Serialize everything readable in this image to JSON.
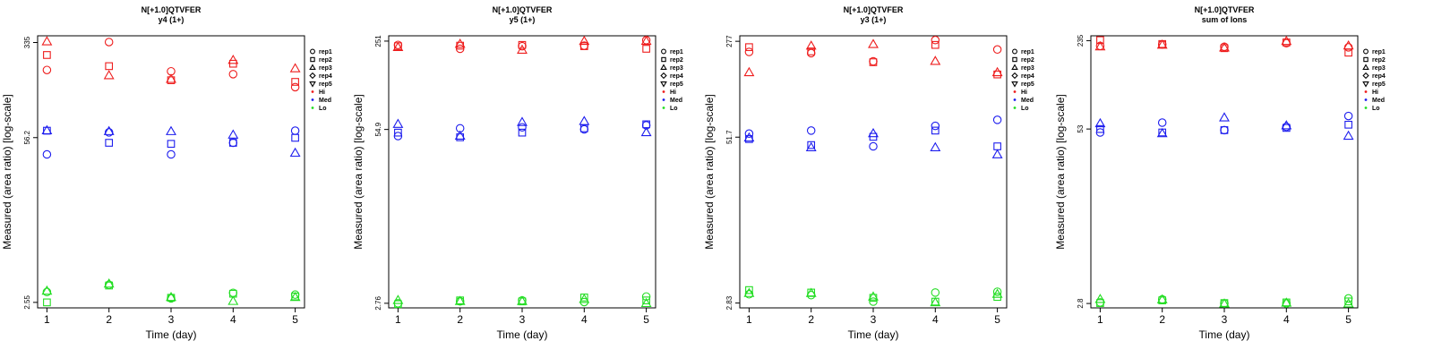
{
  "chart_data": [
    {
      "type": "scatter",
      "title": "N[+1.0]QTVFER",
      "subtitle": "y4 (1+)",
      "xlabel": "Time (day)",
      "ylabel": "Measured (area ratio) [log-scale]",
      "x_ticks": [
        "1",
        "2",
        "3",
        "4",
        "5"
      ],
      "y_ticks": [
        "2.55",
        "56.2",
        "335"
      ],
      "y_scale": "log",
      "ylim": [
        2.3,
        380
      ],
      "legend_position": "right",
      "series": [
        {
          "name": "Hi rep1",
          "level": "Hi",
          "rep": "rep1",
          "x": [
            1,
            2,
            3,
            4,
            5
          ],
          "y": [
            200,
            338,
            195,
            185,
            145
          ]
        },
        {
          "name": "Hi rep2",
          "level": "Hi",
          "rep": "rep2",
          "x": [
            1,
            2,
            3,
            4,
            5
          ],
          "y": [
            265,
            215,
            165,
            225,
            160
          ]
        },
        {
          "name": "Hi rep3",
          "level": "Hi",
          "rep": "rep3",
          "x": [
            1,
            2,
            3,
            4,
            5
          ],
          "y": [
            340,
            180,
            168,
            240,
            205
          ]
        },
        {
          "name": "Med rep1",
          "level": "Med",
          "rep": "rep1",
          "x": [
            1,
            2,
            3,
            4,
            5
          ],
          "y": [
            41,
            62,
            41,
            51,
            64
          ]
        },
        {
          "name": "Med rep2",
          "level": "Med",
          "rep": "rep2",
          "x": [
            1,
            2,
            3,
            4,
            5
          ],
          "y": [
            64,
            51,
            50,
            51,
            56
          ]
        },
        {
          "name": "Med rep3",
          "level": "Med",
          "rep": "rep3",
          "x": [
            1,
            2,
            3,
            4,
            5
          ],
          "y": [
            64,
            63,
            63,
            59,
            42
          ]
        },
        {
          "name": "Lo rep1",
          "level": "Lo",
          "rep": "rep1",
          "x": [
            1,
            2,
            3,
            4,
            5
          ],
          "y": [
            3.1,
            3.55,
            2.75,
            3.05,
            2.95
          ]
        },
        {
          "name": "Lo rep2",
          "level": "Lo",
          "rep": "rep2",
          "x": [
            1,
            2,
            3,
            4,
            5
          ],
          "y": [
            2.55,
            3.5,
            2.78,
            3.0,
            2.85
          ]
        },
        {
          "name": "Lo rep3",
          "level": "Lo",
          "rep": "rep3",
          "x": [
            1,
            2,
            3,
            4,
            5
          ],
          "y": [
            3.15,
            3.6,
            2.8,
            2.6,
            2.8
          ]
        }
      ]
    },
    {
      "type": "scatter",
      "title": "N[+1.0]QTVFER",
      "subtitle": "y5 (1+)",
      "xlabel": "Time (day)",
      "ylabel": "Measured (area ratio) [log-scale]",
      "x_ticks": [
        "1",
        "2",
        "3",
        "4",
        "5"
      ],
      "y_ticks": [
        "2.76",
        "54.9",
        "251"
      ],
      "y_scale": "log",
      "ylim": [
        2.55,
        275
      ],
      "legend_position": "right",
      "series": [
        {
          "name": "Hi rep1",
          "level": "Hi",
          "rep": "rep1",
          "x": [
            1,
            2,
            3,
            4,
            5
          ],
          "y": [
            235,
            220,
            230,
            232,
            255
          ]
        },
        {
          "name": "Hi rep2",
          "level": "Hi",
          "rep": "rep2",
          "x": [
            1,
            2,
            3,
            4,
            5
          ],
          "y": [
            230,
            232,
            235,
            230,
            220
          ]
        },
        {
          "name": "Hi rep3",
          "level": "Hi",
          "rep": "rep3",
          "x": [
            1,
            2,
            3,
            4,
            5
          ],
          "y": [
            225,
            238,
            215,
            250,
            250
          ]
        },
        {
          "name": "Med rep1",
          "level": "Med",
          "rep": "rep1",
          "x": [
            1,
            2,
            3,
            4,
            5
          ],
          "y": [
            49,
            56,
            57,
            55,
            59
          ]
        },
        {
          "name": "Med rep2",
          "level": "Med",
          "rep": "rep2",
          "x": [
            1,
            2,
            3,
            4,
            5
          ],
          "y": [
            52,
            48,
            52,
            56,
            60
          ]
        },
        {
          "name": "Med rep3",
          "level": "Med",
          "rep": "rep3",
          "x": [
            1,
            2,
            3,
            4,
            5
          ],
          "y": [
            60,
            49,
            62,
            63,
            52
          ]
        },
        {
          "name": "Lo rep1",
          "level": "Lo",
          "rep": "rep1",
          "x": [
            1,
            2,
            3,
            4,
            5
          ],
          "y": [
            2.76,
            2.85,
            2.9,
            2.82,
            3.1
          ]
        },
        {
          "name": "Lo rep2",
          "level": "Lo",
          "rep": "rep2",
          "x": [
            1,
            2,
            3,
            4,
            5
          ],
          "y": [
            2.72,
            2.9,
            2.85,
            3.05,
            2.9
          ]
        },
        {
          "name": "Lo rep3",
          "level": "Lo",
          "rep": "rep3",
          "x": [
            1,
            2,
            3,
            4,
            5
          ],
          "y": [
            2.9,
            2.85,
            2.85,
            2.95,
            2.75
          ]
        }
      ]
    },
    {
      "type": "scatter",
      "title": "N[+1.0]QTVFER",
      "subtitle": "y3 (1+)",
      "xlabel": "Time (day)",
      "ylabel": "Measured (area ratio) [log-scale]",
      "x_ticks": [
        "1",
        "2",
        "3",
        "4",
        "5"
      ],
      "y_ticks": [
        "2.83",
        "51.7",
        "277"
      ],
      "y_scale": "log",
      "ylim": [
        2.6,
        305
      ],
      "legend_position": "right",
      "series": [
        {
          "name": "Hi rep1",
          "level": "Hi",
          "rep": "rep1",
          "x": [
            1,
            2,
            3,
            4,
            5
          ],
          "y": [
            230,
            225,
            195,
            283,
            240
          ]
        },
        {
          "name": "Hi rep2",
          "level": "Hi",
          "rep": "rep2",
          "x": [
            1,
            2,
            3,
            4,
            5
          ],
          "y": [
            250,
            232,
            192,
            260,
            155
          ]
        },
        {
          "name": "Hi rep3",
          "level": "Hi",
          "rep": "rep3",
          "x": [
            1,
            2,
            3,
            4,
            5
          ],
          "y": [
            160,
            255,
            262,
            195,
            160
          ]
        },
        {
          "name": "Med rep1",
          "level": "Med",
          "rep": "rep1",
          "x": [
            1,
            2,
            3,
            4,
            5
          ],
          "y": [
            55,
            58,
            44,
            63,
            70
          ]
        },
        {
          "name": "Med rep2",
          "level": "Med",
          "rep": "rep2",
          "x": [
            1,
            2,
            3,
            4,
            5
          ],
          "y": [
            50,
            45,
            52,
            58,
            44
          ]
        },
        {
          "name": "Med rep3",
          "level": "Med",
          "rep": "rep3",
          "x": [
            1,
            2,
            3,
            4,
            5
          ],
          "y": [
            51,
            43,
            55,
            43,
            38
          ]
        },
        {
          "name": "Lo rep1",
          "level": "Lo",
          "rep": "rep1",
          "x": [
            1,
            2,
            3,
            4,
            5
          ],
          "y": [
            3.3,
            3.25,
            2.9,
            3.4,
            3.45
          ]
        },
        {
          "name": "Lo rep2",
          "level": "Lo",
          "rep": "rep2",
          "x": [
            1,
            2,
            3,
            4,
            5
          ],
          "y": [
            3.55,
            3.4,
            3.1,
            2.9,
            3.15
          ]
        },
        {
          "name": "Lo rep3",
          "level": "Lo",
          "rep": "rep3",
          "x": [
            1,
            2,
            3,
            4,
            5
          ],
          "y": [
            3.35,
            3.35,
            3.15,
            2.85,
            3.3
          ]
        }
      ]
    },
    {
      "type": "scatter",
      "title": "N[+1.0]QTVFER",
      "subtitle": "sum of Ions",
      "xlabel": "Time (day)",
      "ylabel": "Measured (area ratio) [log-scale]",
      "x_ticks": [
        "1",
        "2",
        "3",
        "4",
        "5"
      ],
      "y_ticks": [
        "2.8",
        "53",
        "235"
      ],
      "y_scale": "log",
      "ylim": [
        2.6,
        255
      ],
      "legend_position": "right",
      "series": [
        {
          "name": "Hi rep1",
          "level": "Hi",
          "rep": "rep1",
          "x": [
            1,
            2,
            3,
            4,
            5
          ],
          "y": [
            215,
            220,
            212,
            225,
            210
          ]
        },
        {
          "name": "Hi rep2",
          "level": "Hi",
          "rep": "rep2",
          "x": [
            1,
            2,
            3,
            4,
            5
          ],
          "y": [
            237,
            222,
            207,
            228,
            192
          ]
        },
        {
          "name": "Hi rep3",
          "level": "Hi",
          "rep": "rep3",
          "x": [
            1,
            2,
            3,
            4,
            5
          ],
          "y": [
            212,
            218,
            208,
            232,
            215
          ]
        },
        {
          "name": "Med rep1",
          "level": "Med",
          "rep": "rep1",
          "x": [
            1,
            2,
            3,
            4,
            5
          ],
          "y": [
            50,
            59,
            52,
            55,
            66
          ]
        },
        {
          "name": "Med rep2",
          "level": "Med",
          "rep": "rep2",
          "x": [
            1,
            2,
            3,
            4,
            5
          ],
          "y": [
            53,
            50,
            52,
            54,
            57
          ]
        },
        {
          "name": "Med rep3",
          "level": "Med",
          "rep": "rep3",
          "x": [
            1,
            2,
            3,
            4,
            5
          ],
          "y": [
            58,
            49,
            64,
            56,
            47
          ]
        },
        {
          "name": "Lo rep1",
          "level": "Lo",
          "rep": "rep1",
          "x": [
            1,
            2,
            3,
            4,
            5
          ],
          "y": [
            2.85,
            3.0,
            2.8,
            2.8,
            3.05
          ]
        },
        {
          "name": "Lo rep2",
          "level": "Lo",
          "rep": "rep2",
          "x": [
            1,
            2,
            3,
            4,
            5
          ],
          "y": [
            2.82,
            2.95,
            2.82,
            2.85,
            2.9
          ]
        },
        {
          "name": "Lo rep3",
          "level": "Lo",
          "rep": "rep3",
          "x": [
            1,
            2,
            3,
            4,
            5
          ],
          "y": [
            3.0,
            2.98,
            2.78,
            2.82,
            2.78
          ]
        }
      ]
    }
  ],
  "legend": {
    "reps": [
      {
        "label": "rep1",
        "shape": "circle"
      },
      {
        "label": "rep2",
        "shape": "square"
      },
      {
        "label": "rep3",
        "shape": "triangle-up"
      },
      {
        "label": "rep4",
        "shape": "diamond"
      },
      {
        "label": "rep5",
        "shape": "triangle-down"
      }
    ],
    "levels": [
      {
        "label": "Hi",
        "color": "#ee1c1c"
      },
      {
        "label": "Med",
        "color": "#1c1cee"
      },
      {
        "label": "Lo",
        "color": "#22dd22"
      }
    ]
  }
}
